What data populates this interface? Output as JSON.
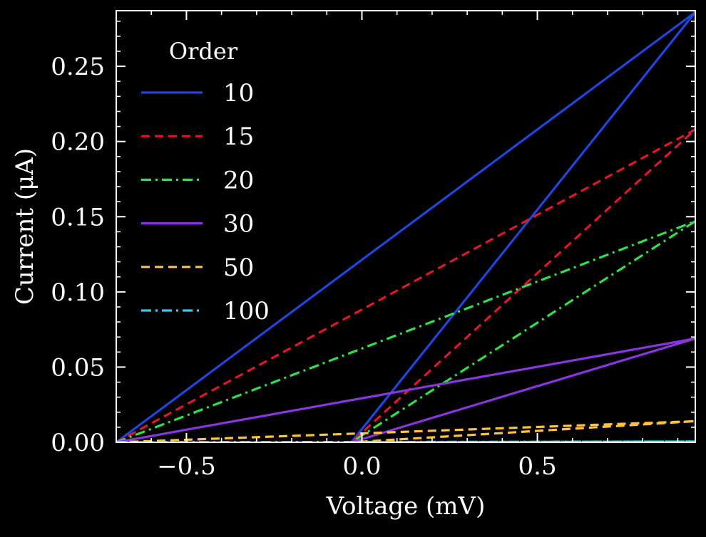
{
  "chart_data": {
    "type": "line",
    "title": "",
    "xlabel": "Voltage (mV)",
    "ylabel": "Current (μA)",
    "xlim": [
      -0.7,
      0.95
    ],
    "ylim": [
      0.0,
      0.287
    ],
    "grid": false,
    "legend": {
      "title": "Order",
      "placement": "top-left"
    },
    "x_ticks": [
      {
        "value": -0.5,
        "label": "−0.5"
      },
      {
        "value": 0.0,
        "label": "0.0"
      },
      {
        "value": 0.5,
        "label": "0.5"
      }
    ],
    "y_ticks": [
      {
        "value": 0.0,
        "label": "0.00"
      },
      {
        "value": 0.05,
        "label": "0.05"
      },
      {
        "value": 0.1,
        "label": "0.10"
      },
      {
        "value": 0.15,
        "label": "0.15"
      },
      {
        "value": 0.2,
        "label": "0.20"
      },
      {
        "value": 0.25,
        "label": "0.25"
      }
    ],
    "series": [
      {
        "name": "10",
        "color": "#1f46e0",
        "dash": "solid",
        "x": [
          -0.7,
          0.95,
          -0.03
        ],
        "y": [
          0.0,
          0.286,
          0.0
        ]
      },
      {
        "name": "15",
        "color": "#e0162b",
        "dash": "dashed",
        "x": [
          -0.7,
          0.95,
          -0.03
        ],
        "y": [
          0.0,
          0.208,
          0.0
        ]
      },
      {
        "name": "20",
        "color": "#2fe04a",
        "dash": "dashdot",
        "x": [
          -0.7,
          0.95,
          -0.03
        ],
        "y": [
          0.0,
          0.147,
          0.0
        ]
      },
      {
        "name": "30",
        "color": "#8a35e0",
        "dash": "solid",
        "x": [
          -0.7,
          0.95,
          -0.03
        ],
        "y": [
          0.0,
          0.069,
          0.0
        ]
      },
      {
        "name": "50",
        "color": "#ffc23a",
        "dash": "dashed",
        "x": [
          -0.7,
          0.95,
          -0.03
        ],
        "y": [
          0.0,
          0.014,
          0.0
        ]
      },
      {
        "name": "100",
        "color": "#2ad0f0",
        "dash": "dashdot",
        "x": [
          -0.7,
          0.95,
          -0.03
        ],
        "y": [
          0.0,
          0.0005,
          0.0
        ]
      }
    ]
  }
}
